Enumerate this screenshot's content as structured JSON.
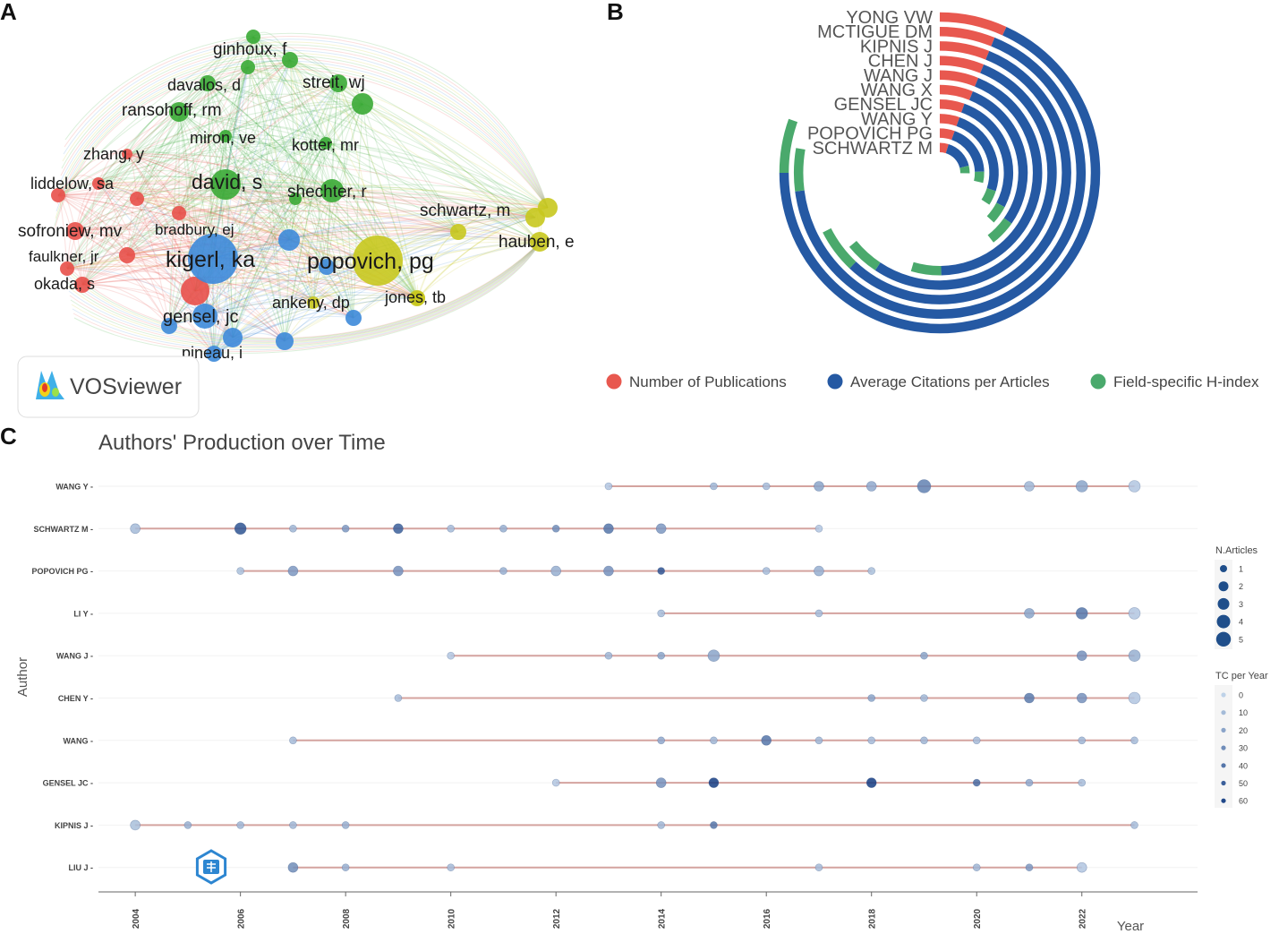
{
  "panels": {
    "a": "A",
    "b": "B",
    "c": "C"
  },
  "colors": {
    "red": "#e8504a",
    "green": "#3aaa35",
    "blue": "#3d8ad9",
    "yellow": "#c8c81e",
    "pub": "#e8584f",
    "cite": "#2559a3",
    "hindex": "#4aa96c",
    "dot": "#2c5a91",
    "segment": "#d4a39f"
  },
  "chart_data": [
    {
      "type": "network",
      "title": "",
      "watermark": "VOSviewer",
      "nodes": [
        {
          "label": "ginhoux, f",
          "cluster": "green"
        },
        {
          "label": "davalos, d",
          "cluster": "green"
        },
        {
          "label": "streit, wj",
          "cluster": "green"
        },
        {
          "label": "ransohoff, rm",
          "cluster": "green"
        },
        {
          "label": "miron, ve",
          "cluster": "green"
        },
        {
          "label": "kotter, mr",
          "cluster": "green"
        },
        {
          "label": "david, s",
          "cluster": "green"
        },
        {
          "label": "shechter, r",
          "cluster": "green"
        },
        {
          "label": "zhang, y",
          "cluster": "red"
        },
        {
          "label": "liddelow, sa",
          "cluster": "red"
        },
        {
          "label": "sofroniew, mv",
          "cluster": "red"
        },
        {
          "label": "bradbury, ej",
          "cluster": "red"
        },
        {
          "label": "faulkner, jr",
          "cluster": "red"
        },
        {
          "label": "okada, s",
          "cluster": "red"
        },
        {
          "label": "kigerl, ka",
          "cluster": "blue"
        },
        {
          "label": "gensel, jc",
          "cluster": "blue"
        },
        {
          "label": "pineau, i",
          "cluster": "blue"
        },
        {
          "label": "popovich, pg",
          "cluster": "yellow"
        },
        {
          "label": "schwartz, m",
          "cluster": "yellow"
        },
        {
          "label": "hauben, e",
          "cluster": "yellow"
        },
        {
          "label": "ankeny, dp",
          "cluster": "yellow"
        },
        {
          "label": "jones, tb",
          "cluster": "yellow"
        }
      ]
    },
    {
      "type": "radial-bar",
      "authors": [
        "YONG VW",
        "MCTIGUE DM",
        "KIPNIS J",
        "CHEN J",
        "WANG J",
        "WANG X",
        "GENSEL JC",
        "WANG Y",
        "POPOVICH PG",
        "SCHWARTZ M"
      ],
      "legend": [
        "Number of Publications",
        "Average Citations per Articles",
        "Field-specific H-index"
      ],
      "series": [
        {
          "name": "Number of Publications",
          "values": [
            10,
            9,
            9,
            9,
            9,
            9,
            8,
            8,
            8,
            7
          ]
        },
        {
          "name": "Average Citations per Articles",
          "values": [
            100,
            98,
            82,
            78,
            64,
            42,
            40,
            36,
            28,
            24
          ]
        },
        {
          "name": "Field-specific H-index",
          "values": [
            8,
            7,
            8,
            7,
            7,
            7,
            6,
            6,
            6,
            6
          ]
        }
      ],
      "max_angle_deg": 270
    },
    {
      "type": "scatter",
      "title": "Authors' Production over Time",
      "xlabel": "Year",
      "ylabel": "Author",
      "xlim": [
        2003.3,
        2024.2
      ],
      "xticks": [
        "2004",
        "2006",
        "2008",
        "2010",
        "2012",
        "2014",
        "2016",
        "2018",
        "2020",
        "2022"
      ],
      "legend_size": {
        "title": "N.Articles",
        "labels": [
          "1",
          "2",
          "3",
          "4",
          "5"
        ]
      },
      "legend_color": {
        "title": "TC per Year",
        "labels": [
          "0",
          "10",
          "20",
          "30",
          "40",
          "50",
          "60"
        ]
      },
      "rows": [
        {
          "author": "WANG Y",
          "points": [
            [
              2013,
              1,
              5
            ],
            [
              2015,
              1,
              12
            ],
            [
              2016,
              1,
              10
            ],
            [
              2017,
              2,
              20
            ],
            [
              2018,
              2,
              18
            ],
            [
              2019,
              4,
              35
            ],
            [
              2021,
              2,
              12
            ],
            [
              2022,
              3,
              20
            ],
            [
              2023,
              3,
              5
            ]
          ]
        },
        {
          "author": "SCHWARTZ M",
          "points": [
            [
              2004,
              2,
              10
            ],
            [
              2006,
              3,
              55
            ],
            [
              2007,
              1,
              12
            ],
            [
              2008,
              1,
              25
            ],
            [
              2009,
              2,
              50
            ],
            [
              2010,
              1,
              10
            ],
            [
              2011,
              1,
              15
            ],
            [
              2012,
              1,
              30
            ],
            [
              2013,
              2,
              40
            ],
            [
              2014,
              2,
              25
            ],
            [
              2017,
              1,
              5
            ]
          ]
        },
        {
          "author": "POPOVICH PG",
          "points": [
            [
              2006,
              1,
              8
            ],
            [
              2007,
              2,
              25
            ],
            [
              2009,
              2,
              28
            ],
            [
              2011,
              1,
              15
            ],
            [
              2012,
              2,
              15
            ],
            [
              2013,
              2,
              28
            ],
            [
              2014,
              1,
              55
            ],
            [
              2016,
              1,
              10
            ],
            [
              2017,
              2,
              15
            ],
            [
              2018,
              1,
              8
            ]
          ]
        },
        {
          "author": "LI Y",
          "points": [
            [
              2014,
              1,
              10
            ],
            [
              2017,
              1,
              10
            ],
            [
              2021,
              2,
              20
            ],
            [
              2022,
              3,
              40
            ],
            [
              2023,
              3,
              5
            ]
          ]
        },
        {
          "author": "WANG J",
          "points": [
            [
              2010,
              1,
              5
            ],
            [
              2013,
              1,
              12
            ],
            [
              2014,
              1,
              20
            ],
            [
              2015,
              3,
              20
            ],
            [
              2019,
              1,
              20
            ],
            [
              2022,
              2,
              28
            ],
            [
              2023,
              3,
              15
            ]
          ]
        },
        {
          "author": "CHEN Y",
          "points": [
            [
              2009,
              1,
              10
            ],
            [
              2018,
              1,
              20
            ],
            [
              2019,
              1,
              12
            ],
            [
              2021,
              2,
              38
            ],
            [
              2022,
              2,
              28
            ],
            [
              2023,
              3,
              5
            ]
          ]
        },
        {
          "author": "WANG",
          "points": [
            [
              2007,
              1,
              10
            ],
            [
              2014,
              1,
              18
            ],
            [
              2015,
              1,
              12
            ],
            [
              2016,
              2,
              40
            ],
            [
              2017,
              1,
              12
            ],
            [
              2018,
              1,
              10
            ],
            [
              2019,
              1,
              12
            ],
            [
              2020,
              1,
              10
            ],
            [
              2022,
              1,
              12
            ],
            [
              2023,
              1,
              10
            ]
          ]
        },
        {
          "author": "GENSEL JC",
          "points": [
            [
              2012,
              1,
              5
            ],
            [
              2014,
              2,
              28
            ],
            [
              2015,
              2,
              65
            ],
            [
              2018,
              2,
              65
            ],
            [
              2020,
              1,
              45
            ],
            [
              2021,
              1,
              18
            ],
            [
              2022,
              1,
              10
            ]
          ]
        },
        {
          "author": "KIPNIS J",
          "points": [
            [
              2004,
              2,
              8
            ],
            [
              2005,
              1,
              15
            ],
            [
              2006,
              1,
              12
            ],
            [
              2007,
              1,
              12
            ],
            [
              2008,
              1,
              15
            ],
            [
              2014,
              1,
              12
            ],
            [
              2015,
              1,
              40
            ],
            [
              2023,
              1,
              10
            ]
          ]
        },
        {
          "author": "LIU J",
          "points": [
            [
              2007,
              2,
              30
            ],
            [
              2008,
              1,
              15
            ],
            [
              2010,
              1,
              10
            ],
            [
              2017,
              1,
              10
            ],
            [
              2020,
              1,
              12
            ],
            [
              2021,
              1,
              25
            ],
            [
              2022,
              2,
              5
            ]
          ]
        }
      ]
    }
  ]
}
